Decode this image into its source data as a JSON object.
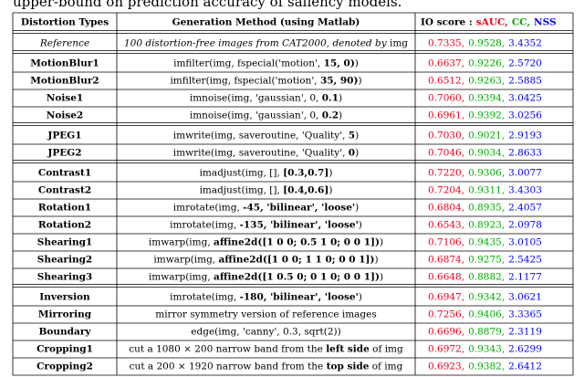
{
  "caption_fragment": "upper-bound on prediction accuracy of saliency models.",
  "table": {
    "header": {
      "type": "Distortion Types",
      "method": "Generation Method (using Matlab)",
      "score_label": "IO score :",
      "score_names": [
        "sAUC,",
        "CC,",
        "NSS"
      ]
    },
    "score_colors": [
      "#e8001c",
      "#00a800",
      "#0000ee"
    ],
    "groups": [
      {
        "italic": true,
        "rows": [
          {
            "type": "Reference",
            "method": [
              {
                "text": "100 distortion-free images from CAT2000, denoted by "
              },
              {
                "text": "img",
                "upright": true
              }
            ],
            "scores": [
              "0.7335,",
              "0.9528,",
              "3.4352"
            ]
          }
        ]
      },
      {
        "rows": [
          {
            "type": "MotionBlur1",
            "method": [
              {
                "text": "imfilter(img, fspecial('motion', "
              },
              {
                "text": "15, 0)",
                "bold": true
              },
              {
                "text": ")"
              }
            ],
            "scores": [
              "0.6637,",
              "0.9226,",
              "2.5720"
            ]
          },
          {
            "type": "MotionBlur2",
            "method": [
              {
                "text": "imfilter(img, fspecial('motion', "
              },
              {
                "text": "35, 90)",
                "bold": true
              },
              {
                "text": ")"
              }
            ],
            "scores": [
              "0.6512,",
              "0.9263,",
              "2.5885"
            ]
          },
          {
            "type": "Noise1",
            "method": [
              {
                "text": "imnoise(img, 'gaussian', 0, "
              },
              {
                "text": "0.1",
                "bold": true
              },
              {
                "text": ")"
              }
            ],
            "scores": [
              "0.7060,",
              "0.9394,",
              "3.0425"
            ]
          },
          {
            "type": "Noise2",
            "method": [
              {
                "text": "imnoise(img, 'gaussian', 0, "
              },
              {
                "text": "0.2",
                "bold": true
              },
              {
                "text": ")"
              }
            ],
            "scores": [
              "0.6961,",
              "0.9392,",
              "3.0256"
            ]
          }
        ]
      },
      {
        "rows": [
          {
            "type": "JPEG1",
            "method": [
              {
                "text": "imwrite(img, saveroutine, 'Quality', "
              },
              {
                "text": "5",
                "bold": true
              },
              {
                "text": ")"
              }
            ],
            "scores": [
              "0.7030,",
              "0.9021,",
              "2.9193"
            ]
          },
          {
            "type": "JPEG2",
            "method": [
              {
                "text": "imwrite(img, saveroutine, 'Quality', "
              },
              {
                "text": "0",
                "bold": true
              },
              {
                "text": ")"
              }
            ],
            "scores": [
              "0.7046,",
              "0.9034,",
              "2.8633"
            ]
          }
        ]
      },
      {
        "rows": [
          {
            "type": "Contrast1",
            "method": [
              {
                "text": "imadjust(img, [], "
              },
              {
                "text": "[0.3,0.7]",
                "bold": true
              },
              {
                "text": ")"
              }
            ],
            "scores": [
              "0.7220,",
              "0.9306,",
              "3.0077"
            ]
          },
          {
            "type": "Contrast2",
            "method": [
              {
                "text": "imadjust(img, [], "
              },
              {
                "text": "[0.4,0.6]",
                "bold": true
              },
              {
                "text": ")"
              }
            ],
            "scores": [
              "0.7204,",
              "0.9311,",
              "3.4303"
            ]
          },
          {
            "type": "Rotation1",
            "method": [
              {
                "text": "imrotate(img, "
              },
              {
                "text": "-45, 'bilinear', 'loose'",
                "bold": true
              },
              {
                "text": ")"
              }
            ],
            "scores": [
              "0.6804,",
              "0.8935,",
              "2.4057"
            ]
          },
          {
            "type": "Rotation2",
            "method": [
              {
                "text": "imrotate(img, "
              },
              {
                "text": "-135, 'bilinear', 'loose'",
                "bold": true
              },
              {
                "text": ")"
              }
            ],
            "scores": [
              "0.6543,",
              "0.8923,",
              "2.0978"
            ]
          },
          {
            "type": "Shearing1",
            "method": [
              {
                "text": "imwarp(img, "
              },
              {
                "text": "affine2d([1 0 0; 0.5 1 0; 0 0 1])",
                "bold": true
              },
              {
                "text": ")"
              }
            ],
            "scores": [
              "0.7106,",
              "0.9435,",
              "3.0105"
            ]
          },
          {
            "type": "Shearing2",
            "method": [
              {
                "text": "imwarp(img, "
              },
              {
                "text": "affine2d([1 0 0; 1 1 0; 0 0 1])",
                "bold": true
              },
              {
                "text": ")"
              }
            ],
            "scores": [
              "0.6874,",
              "0.9275,",
              "2.5425"
            ]
          },
          {
            "type": "Shearing3",
            "method": [
              {
                "text": "imwarp(img, "
              },
              {
                "text": "affine2d([1 0.5 0; 0 1 0; 0 0 1])",
                "bold": true
              },
              {
                "text": ")"
              }
            ],
            "scores": [
              "0.6648,",
              "0.8882,",
              "2.1177"
            ]
          }
        ]
      },
      {
        "rows": [
          {
            "type": "Inversion",
            "method": [
              {
                "text": "imrotate(img, "
              },
              {
                "text": "-180, 'bilinear', 'loose'",
                "bold": true
              },
              {
                "text": ")"
              }
            ],
            "scores": [
              "0.6947,",
              "0.9342,",
              "3.0621"
            ]
          },
          {
            "type": "Mirroring",
            "method": [
              {
                "text": "mirror symmetry version of reference images"
              }
            ],
            "scores": [
              "0.7256,",
              "0.9406,",
              "3.3365"
            ]
          },
          {
            "type": "Boundary",
            "method": [
              {
                "text": "edge(img, 'canny', 0.3, sqrt(2))"
              }
            ],
            "scores": [
              "0.6696,",
              "0.8879,",
              "2.3119"
            ]
          },
          {
            "type": "Cropping1",
            "method": [
              {
                "text": "cut a 1080 × 200 narrow band from the "
              },
              {
                "text": "left side",
                "bold": true
              },
              {
                "text": " of img"
              }
            ],
            "scores": [
              "0.6972,",
              "0.9343,",
              "2.6299"
            ]
          },
          {
            "type": "Cropping2",
            "method": [
              {
                "text": "cut a 200 × 1920 narrow band from the "
              },
              {
                "text": "top side",
                "bold": true
              },
              {
                "text": " of img"
              }
            ],
            "scores": [
              "0.6923,",
              "0.9382,",
              "2.6412"
            ]
          }
        ]
      }
    ]
  }
}
